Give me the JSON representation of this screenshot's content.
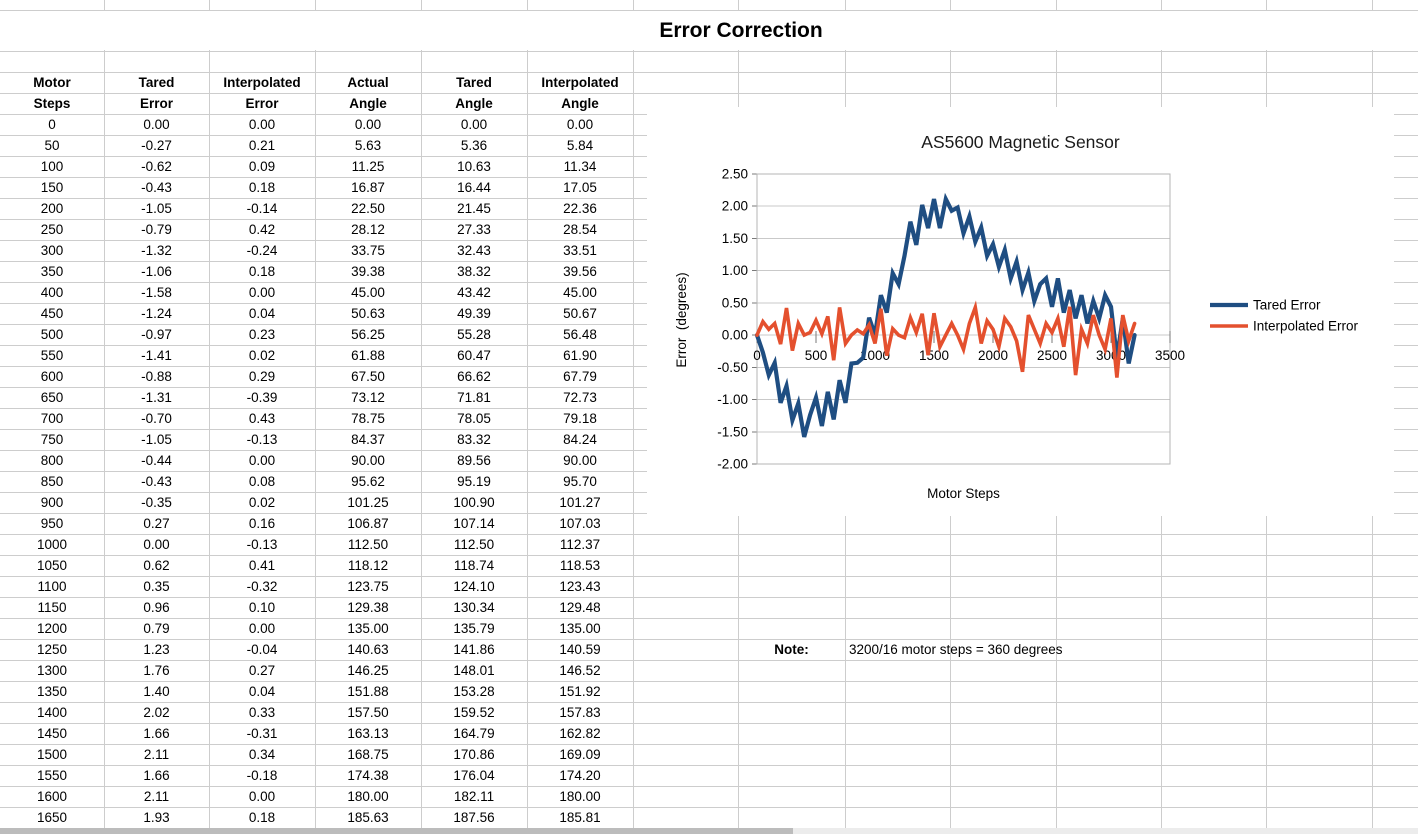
{
  "sheet": {
    "title": "Error Correction"
  },
  "table": {
    "headers": [
      [
        "Motor",
        "Steps"
      ],
      [
        "Tared",
        "Error"
      ],
      [
        "Interpolated",
        "Error"
      ],
      [
        "Actual",
        "Angle"
      ],
      [
        "Tared",
        "Angle"
      ],
      [
        "Interpolated",
        "Angle"
      ]
    ],
    "rows": [
      [
        "0",
        "0.00",
        "0.00",
        "0.00",
        "0.00",
        "0.00"
      ],
      [
        "50",
        "-0.27",
        "0.21",
        "5.63",
        "5.36",
        "5.84"
      ],
      [
        "100",
        "-0.62",
        "0.09",
        "11.25",
        "10.63",
        "11.34"
      ],
      [
        "150",
        "-0.43",
        "0.18",
        "16.87",
        "16.44",
        "17.05"
      ],
      [
        "200",
        "-1.05",
        "-0.14",
        "22.50",
        "21.45",
        "22.36"
      ],
      [
        "250",
        "-0.79",
        "0.42",
        "28.12",
        "27.33",
        "28.54"
      ],
      [
        "300",
        "-1.32",
        "-0.24",
        "33.75",
        "32.43",
        "33.51"
      ],
      [
        "350",
        "-1.06",
        "0.18",
        "39.38",
        "38.32",
        "39.56"
      ],
      [
        "400",
        "-1.58",
        "0.00",
        "45.00",
        "43.42",
        "45.00"
      ],
      [
        "450",
        "-1.24",
        "0.04",
        "50.63",
        "49.39",
        "50.67"
      ],
      [
        "500",
        "-0.97",
        "0.23",
        "56.25",
        "55.28",
        "56.48"
      ],
      [
        "550",
        "-1.41",
        "0.02",
        "61.88",
        "60.47",
        "61.90"
      ],
      [
        "600",
        "-0.88",
        "0.29",
        "67.50",
        "66.62",
        "67.79"
      ],
      [
        "650",
        "-1.31",
        "-0.39",
        "73.12",
        "71.81",
        "72.73"
      ],
      [
        "700",
        "-0.70",
        "0.43",
        "78.75",
        "78.05",
        "79.18"
      ],
      [
        "750",
        "-1.05",
        "-0.13",
        "84.37",
        "83.32",
        "84.24"
      ],
      [
        "800",
        "-0.44",
        "0.00",
        "90.00",
        "89.56",
        "90.00"
      ],
      [
        "850",
        "-0.43",
        "0.08",
        "95.62",
        "95.19",
        "95.70"
      ],
      [
        "900",
        "-0.35",
        "0.02",
        "101.25",
        "100.90",
        "101.27"
      ],
      [
        "950",
        "0.27",
        "0.16",
        "106.87",
        "107.14",
        "107.03"
      ],
      [
        "1000",
        "0.00",
        "-0.13",
        "112.50",
        "112.50",
        "112.37"
      ],
      [
        "1050",
        "0.62",
        "0.41",
        "118.12",
        "118.74",
        "118.53"
      ],
      [
        "1100",
        "0.35",
        "-0.32",
        "123.75",
        "124.10",
        "123.43"
      ],
      [
        "1150",
        "0.96",
        "0.10",
        "129.38",
        "130.34",
        "129.48"
      ],
      [
        "1200",
        "0.79",
        "0.00",
        "135.00",
        "135.79",
        "135.00"
      ],
      [
        "1250",
        "1.23",
        "-0.04",
        "140.63",
        "141.86",
        "140.59"
      ],
      [
        "1300",
        "1.76",
        "0.27",
        "146.25",
        "148.01",
        "146.52"
      ],
      [
        "1350",
        "1.40",
        "0.04",
        "151.88",
        "153.28",
        "151.92"
      ],
      [
        "1400",
        "2.02",
        "0.33",
        "157.50",
        "159.52",
        "157.83"
      ],
      [
        "1450",
        "1.66",
        "-0.31",
        "163.13",
        "164.79",
        "162.82"
      ],
      [
        "1500",
        "2.11",
        "0.34",
        "168.75",
        "170.86",
        "169.09"
      ],
      [
        "1550",
        "1.66",
        "-0.18",
        "174.38",
        "176.04",
        "174.20"
      ],
      [
        "1600",
        "2.11",
        "0.00",
        "180.00",
        "182.11",
        "180.00"
      ],
      [
        "1650",
        "1.93",
        "0.18",
        "185.63",
        "187.56",
        "185.81"
      ]
    ]
  },
  "note": {
    "label": "Note:",
    "text": "3200/16 motor steps = 360 degrees"
  },
  "chart_data": {
    "type": "line",
    "title": "AS5600 Magnetic Sensor",
    "xlabel": "Motor Steps",
    "ylabel": "Error  (degrees)",
    "xlim": [
      0,
      3500
    ],
    "ylim": [
      -2.0,
      2.5
    ],
    "xticks": [
      0,
      500,
      1000,
      1500,
      2000,
      2500,
      3000,
      3500
    ],
    "ytick_step": 0.5,
    "grid": true,
    "legend_position": "right",
    "x": [
      0,
      50,
      100,
      150,
      200,
      250,
      300,
      350,
      400,
      450,
      500,
      550,
      600,
      650,
      700,
      750,
      800,
      850,
      900,
      950,
      1000,
      1050,
      1100,
      1150,
      1200,
      1250,
      1300,
      1350,
      1400,
      1450,
      1500,
      1550,
      1600,
      1650,
      1700,
      1750,
      1800,
      1850,
      1900,
      1950,
      2000,
      2050,
      2100,
      2150,
      2200,
      2250,
      2300,
      2350,
      2400,
      2450,
      2500,
      2550,
      2600,
      2650,
      2700,
      2750,
      2800,
      2850,
      2900,
      2950,
      3000,
      3050,
      3100,
      3150,
      3200
    ],
    "series": [
      {
        "name": "Tared Error",
        "color": "#1F4E82",
        "values": [
          0,
          -0.27,
          -0.62,
          -0.43,
          -1.05,
          -0.79,
          -1.32,
          -1.06,
          -1.58,
          -1.24,
          -0.97,
          -1.41,
          -0.88,
          -1.31,
          -0.7,
          -1.05,
          -0.44,
          -0.43,
          -0.35,
          0.27,
          0,
          0.62,
          0.35,
          0.96,
          0.79,
          1.23,
          1.76,
          1.4,
          2.02,
          1.66,
          2.11,
          1.66,
          2.11,
          1.93,
          1.98,
          1.58,
          1.84,
          1.45,
          1.67,
          1.23,
          1.41,
          1.06,
          1.32,
          0.88,
          1.14,
          0.7,
          0.97,
          0.53,
          0.79,
          0.88,
          0.44,
          0.88,
          0.35,
          0.7,
          0.26,
          0.62,
          0.18,
          0.53,
          0.26,
          0.62,
          0.44,
          -0.35,
          0.26,
          -0.44,
          0
        ]
      },
      {
        "name": "Interpolated Error",
        "color": "#E4502E",
        "values": [
          0,
          0.21,
          0.09,
          0.18,
          -0.14,
          0.42,
          -0.24,
          0.18,
          0,
          0.04,
          0.23,
          0.02,
          0.29,
          -0.39,
          0.43,
          -0.13,
          0,
          0.08,
          0.02,
          0.16,
          -0.13,
          0.41,
          -0.32,
          0.1,
          0,
          -0.04,
          0.27,
          0.04,
          0.33,
          -0.31,
          0.34,
          -0.18,
          0,
          0.18,
          0,
          -0.22,
          0.18,
          0.43,
          -0.13,
          0.22,
          0.09,
          -0.18,
          0.26,
          0.13,
          -0.09,
          -0.57,
          0.31,
          0.09,
          -0.13,
          0.18,
          0.04,
          0.26,
          -0.18,
          0.44,
          -0.62,
          0.09,
          -0.13,
          0.31,
          0,
          -0.22,
          0.26,
          -0.66,
          0.31,
          -0.09,
          0.18
        ]
      }
    ]
  }
}
